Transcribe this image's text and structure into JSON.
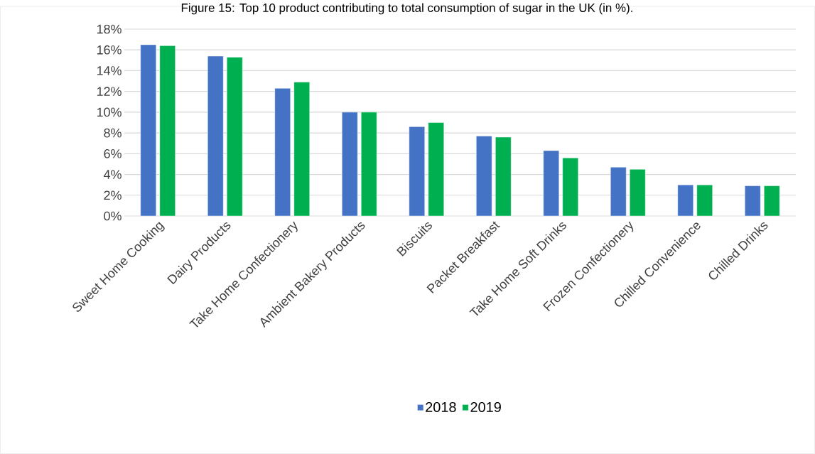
{
  "chart_data": {
    "type": "bar",
    "title": "Figure 15: Top 10 product contributing to total consumption of sugar in the UK (in %).",
    "categories": [
      "Sweet Home Cooking",
      "Dairy Products",
      "Take Home Confectionery",
      "Ambient Bakery Products",
      "Biscuits",
      "Packet Breakfast",
      "Take Home Soft Drinks",
      "Frozen Confectionery",
      "Chilled Convenience",
      "Chilled Drinks"
    ],
    "series": [
      {
        "name": "2018",
        "color": "#4472c4",
        "values": [
          16.5,
          15.4,
          12.3,
          10.0,
          8.6,
          7.7,
          6.3,
          4.7,
          3.0,
          2.9
        ]
      },
      {
        "name": "2019",
        "color": "#00b050",
        "values": [
          16.4,
          15.3,
          12.9,
          10.0,
          9.0,
          7.6,
          5.6,
          4.5,
          3.0,
          2.9
        ]
      }
    ],
    "ylim": [
      0,
      18
    ],
    "yticks": [
      {
        "value": 0,
        "label": "0%"
      },
      {
        "value": 2,
        "label": "2%"
      },
      {
        "value": 4,
        "label": "4%"
      },
      {
        "value": 6,
        "label": "6%"
      },
      {
        "value": 8,
        "label": "8%"
      },
      {
        "value": 10,
        "label": "10%"
      },
      {
        "value": 12,
        "label": "12%"
      },
      {
        "value": 14,
        "label": "14%"
      },
      {
        "value": 16,
        "label": "16%"
      },
      {
        "value": 18,
        "label": "18%"
      }
    ],
    "grid": "y",
    "legend": "bottom"
  }
}
